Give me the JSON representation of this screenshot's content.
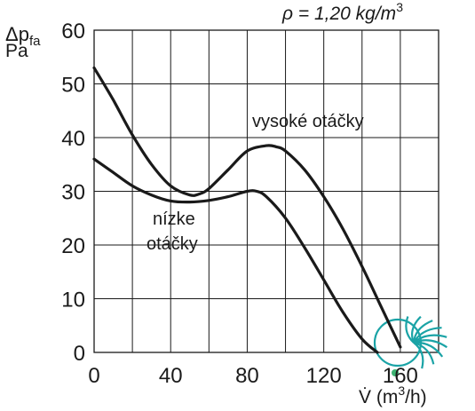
{
  "chart_data": {
    "type": "line",
    "ylabel_symbol": "Δp",
    "ylabel_sub": "fa",
    "ylabel_unit": "Pa",
    "xlabel_prefix": "V̇ (m",
    "xlabel_sup": "3",
    "xlabel_suffix": "/h)",
    "density_prefix": "ρ = 1,20 kg/m",
    "density_sup": "3",
    "xlim": [
      0,
      180
    ],
    "ylim": [
      0,
      60
    ],
    "xticks": [
      0,
      40,
      80,
      120,
      160
    ],
    "yticks": [
      0,
      10,
      20,
      30,
      40,
      50,
      60
    ],
    "grid": true,
    "series": [
      {
        "name": "vysoké otáčky",
        "x": [
          0,
          10,
          20,
          30,
          40,
          50,
          55,
          60,
          70,
          80,
          90,
          95,
          100,
          110,
          120,
          130,
          140,
          150,
          160
        ],
        "y": [
          53,
          47,
          40.5,
          35,
          31,
          29.3,
          29.5,
          30.5,
          34,
          37.5,
          38.5,
          38.3,
          37.5,
          34,
          29,
          23,
          16,
          8.5,
          1
        ]
      },
      {
        "name": "nízke otáčky",
        "x": [
          0,
          10,
          20,
          30,
          40,
          50,
          60,
          70,
          80,
          85,
          90,
          100,
          110,
          120,
          130,
          140,
          148
        ],
        "y": [
          36,
          33.5,
          31,
          29.3,
          28.2,
          28,
          28.3,
          29,
          30,
          30,
          29,
          25,
          19.5,
          13.5,
          7.5,
          2.5,
          0
        ]
      }
    ],
    "annotations": [
      {
        "text": "vysoké otáčky"
      },
      {
        "text": "nízke"
      },
      {
        "text": "otáčky"
      }
    ]
  },
  "logo": {
    "name": "fan-logo",
    "color_main": "#1aa3a6",
    "color_dot": "#3cb371"
  }
}
